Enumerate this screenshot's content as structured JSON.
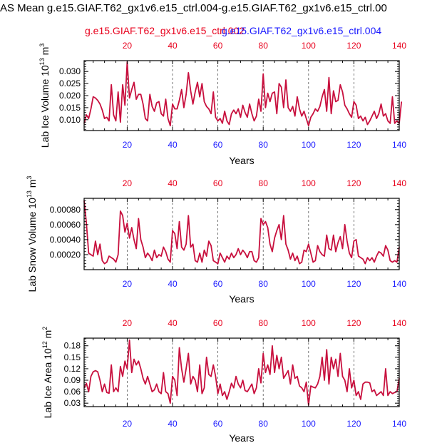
{
  "title": "AS Mean g.e15.GIAF.T62_gx1v6.e15_ctrl.004-g.e15.GIAF.T62_gx1v6.e15_ctrl.00",
  "legend": {
    "series_red": "g.e15.GIAF.T62_gx1v6.e15_ctrl.002",
    "series_blue": "g.e15.GIAF.T62_gx1v6.e15_ctrl.004"
  },
  "colors": {
    "series_red": "#e8001c",
    "series_blue": "#1a1aff",
    "line": "#c8103e",
    "axis": "#000000",
    "grid": "#555555"
  },
  "chart_data": [
    {
      "type": "line",
      "ylabel": "Lab Ice Volume 10",
      "ylabel_sup": "13",
      "ylabel_unit": "m",
      "ylabel_unit_sup": "3",
      "xlabel": "Years",
      "xlim": [
        1,
        140
      ],
      "ylim": [
        0.0055,
        0.0345
      ],
      "x_ticks": [
        20,
        40,
        60,
        80,
        100,
        120,
        140
      ],
      "x_tick_labels": [
        "20",
        "40",
        "60",
        "80",
        "100",
        "120",
        "140"
      ],
      "y_ticks": [
        0.01,
        0.015,
        0.02,
        0.025,
        0.03
      ],
      "y_tick_labels": [
        "0.010",
        "0.015",
        "0.020",
        "0.025",
        "0.030"
      ],
      "vertical_dashed_at": [
        20,
        40,
        60,
        80,
        100,
        120
      ],
      "values": [
        0.0085,
        0.012,
        0.0105,
        0.0145,
        0.0195,
        0.019,
        0.018,
        0.0165,
        0.014,
        0.0105,
        0.011,
        0.0095,
        0.0245,
        0.012,
        0.0095,
        0.0215,
        0.009,
        0.0245,
        0.016,
        0.034,
        0.019,
        0.0225,
        0.0255,
        0.0185,
        0.0205,
        0.0205,
        0.0165,
        0.0105,
        0.0095,
        0.0205,
        0.0155,
        0.0135,
        0.017,
        0.0175,
        0.0125,
        0.0115,
        0.0185,
        0.0105,
        0.0075,
        0.0165,
        0.0145,
        0.0145,
        0.018,
        0.0225,
        0.015,
        0.0205,
        0.0295,
        0.022,
        0.0165,
        0.0215,
        0.0255,
        0.0195,
        0.025,
        0.0175,
        0.0155,
        0.0145,
        0.0125,
        0.0215,
        0.011,
        0.0095,
        0.0105,
        0.0085,
        0.0135,
        0.0095,
        0.008,
        0.0125,
        0.014,
        0.0125,
        0.0145,
        0.011,
        0.016,
        0.013,
        0.011,
        0.0165,
        0.0125,
        0.0095,
        0.0115,
        0.0185,
        0.0135,
        0.029,
        0.015,
        0.021,
        0.0175,
        0.021,
        0.0215,
        0.0125,
        0.025,
        0.0235,
        0.015,
        0.0265,
        0.015,
        0.0135,
        0.0155,
        0.0115,
        0.0195,
        0.0145,
        0.0115,
        0.0135,
        0.0105,
        0.0075,
        0.011,
        0.0125,
        0.0145,
        0.0135,
        0.0155,
        0.0195,
        0.0225,
        0.0135,
        0.0275,
        0.0125,
        0.022,
        0.0175,
        0.018,
        0.0245,
        0.0215,
        0.016,
        0.0145,
        0.0125,
        0.011,
        0.0175,
        0.016,
        0.0105,
        0.0115,
        0.0095,
        0.011,
        0.008,
        0.0095,
        0.0115,
        0.0135,
        0.0105,
        0.0125,
        0.0165,
        0.0115,
        0.0125,
        0.0095,
        0.0085,
        0.0195,
        0.0085,
        0.0095,
        0.0085,
        0.0175
      ]
    },
    {
      "type": "line",
      "ylabel": "Lab Snow Volume 10",
      "ylabel_sup": "13",
      "ylabel_unit": "m",
      "ylabel_unit_sup": "3",
      "xlabel": "Years",
      "xlim": [
        1,
        140
      ],
      "ylim": [
        0.0,
        0.00095
      ],
      "x_ticks": [
        20,
        40,
        60,
        80,
        100,
        120,
        140
      ],
      "x_tick_labels": [
        "20",
        "40",
        "60",
        "80",
        "100",
        "120",
        "140"
      ],
      "y_ticks": [
        0.0002,
        0.0004,
        0.0006,
        0.0008
      ],
      "y_tick_labels": [
        "0.00020",
        "0.00040",
        "0.00060",
        "0.00080"
      ],
      "vertical_dashed_at": [
        20,
        40,
        60,
        80,
        100,
        120
      ],
      "values": [
        0.00092,
        0.00062,
        0.00022,
        0.0002,
        0.00018,
        0.00038,
        0.0002,
        0.00034,
        0.00012,
        8e-05,
        0.0001,
        0.00018,
        0.00016,
        0.00014,
        0.0001,
        0.0002,
        0.00078,
        0.00072,
        0.0005,
        0.00062,
        0.00042,
        0.00056,
        0.0004,
        0.00028,
        0.00068,
        0.0004,
        0.0003,
        0.00016,
        0.00022,
        0.00018,
        0.00012,
        0.00026,
        0.00016,
        0.0002,
        0.00018,
        0.0003,
        0.00024,
        0.00014,
        0.0001,
        0.00052,
        0.00048,
        0.00028,
        0.00064,
        0.0003,
        0.00026,
        0.00034,
        0.00072,
        0.0003,
        0.00034,
        0.00012,
        0.0001,
        0.00022,
        0.0001,
        0.00026,
        0.00018,
        0.00038,
        0.00032,
        0.00012,
        0.0001,
        8e-05,
        0.00022,
        0.00016,
        0.0001,
        0.00018,
        0.00014,
        0.00022,
        0.00016,
        0.0002,
        0.00028,
        0.0002,
        0.00026,
        0.00022,
        0.00016,
        0.00024,
        0.00024,
        0.00012,
        0.0001,
        0.00016,
        0.00068,
        0.0006,
        0.00064,
        0.00056,
        0.00034,
        0.00024,
        0.00042,
        0.00052,
        0.0006,
        0.0004,
        0.00072,
        0.00034,
        0.00026,
        0.00014,
        0.00022,
        0.00012,
        0.00018,
        8e-05,
        0.0001,
        0.00026,
        0.00024,
        0.00034,
        0.00022,
        0.0001,
        0.00012,
        0.00032,
        0.00024,
        0.0002,
        0.00018,
        0.00046,
        0.00028,
        0.00026,
        0.00046,
        0.00024,
        0.00036,
        0.00044,
        0.00028,
        0.0006,
        0.00038,
        0.00022,
        0.00016,
        0.00038,
        0.0004,
        0.00018,
        0.00016,
        0.00014,
        8e-05,
        0.00016,
        0.00012,
        0.00016,
        0.0001,
        0.00018,
        0.00024,
        0.00022,
        0.00018,
        0.00032,
        0.00026,
        0.00012,
        0.0001,
        0.00012,
        0.0001,
        0.0003
      ]
    },
    {
      "type": "line",
      "ylabel": "Lab Ice Area 10",
      "ylabel_sup": "12",
      "ylabel_unit": "m",
      "ylabel_unit_sup": "2",
      "xlabel": "Years",
      "xlim": [
        1,
        140
      ],
      "ylim": [
        0.021,
        0.2
      ],
      "x_ticks": [
        20,
        40,
        60,
        80,
        100,
        120,
        140
      ],
      "x_tick_labels": [
        "20",
        "40",
        "60",
        "80",
        "100",
        "120",
        "140"
      ],
      "y_ticks": [
        0.03,
        0.06,
        0.09,
        0.12,
        0.15,
        0.18
      ],
      "y_tick_labels": [
        "0.03",
        "0.06",
        "0.09",
        "0.12",
        "0.15",
        "0.18"
      ],
      "vertical_dashed_at": [
        20,
        40,
        60,
        80,
        100,
        120
      ],
      "values": [
        0.07,
        0.082,
        0.06,
        0.1,
        0.112,
        0.115,
        0.112,
        0.09,
        0.06,
        0.08,
        0.058,
        0.056,
        0.13,
        0.06,
        0.07,
        0.06,
        0.126,
        0.1,
        0.14,
        0.12,
        0.195,
        0.11,
        0.145,
        0.13,
        0.14,
        0.12,
        0.095,
        0.08,
        0.1,
        0.08,
        0.06,
        0.065,
        0.08,
        0.06,
        0.055,
        0.11,
        0.06,
        0.055,
        0.03,
        0.1,
        0.09,
        0.05,
        0.175,
        0.12,
        0.085,
        0.12,
        0.16,
        0.08,
        0.1,
        0.09,
        0.06,
        0.13,
        0.055,
        0.07,
        0.15,
        0.105,
        0.1,
        0.13,
        0.1,
        0.055,
        0.08,
        0.05,
        0.06,
        0.04,
        0.06,
        0.082,
        0.07,
        0.1,
        0.08,
        0.07,
        0.09,
        0.063,
        0.06,
        0.07,
        0.08,
        0.055,
        0.07,
        0.12,
        0.083,
        0.16,
        0.11,
        0.13,
        0.105,
        0.18,
        0.11,
        0.155,
        0.12,
        0.15,
        0.095,
        0.105,
        0.115,
        0.08,
        0.13,
        0.095,
        0.1,
        0.075,
        0.07,
        0.06,
        0.085,
        0.025,
        0.075,
        0.072,
        0.07,
        0.08,
        0.1,
        0.15,
        0.09,
        0.17,
        0.08,
        0.15,
        0.12,
        0.145,
        0.1,
        0.16,
        0.1,
        0.09,
        0.06,
        0.12,
        0.07,
        0.09,
        0.05,
        0.06,
        0.04,
        0.08,
        0.085,
        0.085,
        0.083,
        0.06,
        0.065,
        0.05,
        0.055,
        0.06,
        0.05,
        0.12,
        0.05,
        0.06,
        0.055,
        0.058,
        0.06,
        0.095
      ]
    }
  ]
}
